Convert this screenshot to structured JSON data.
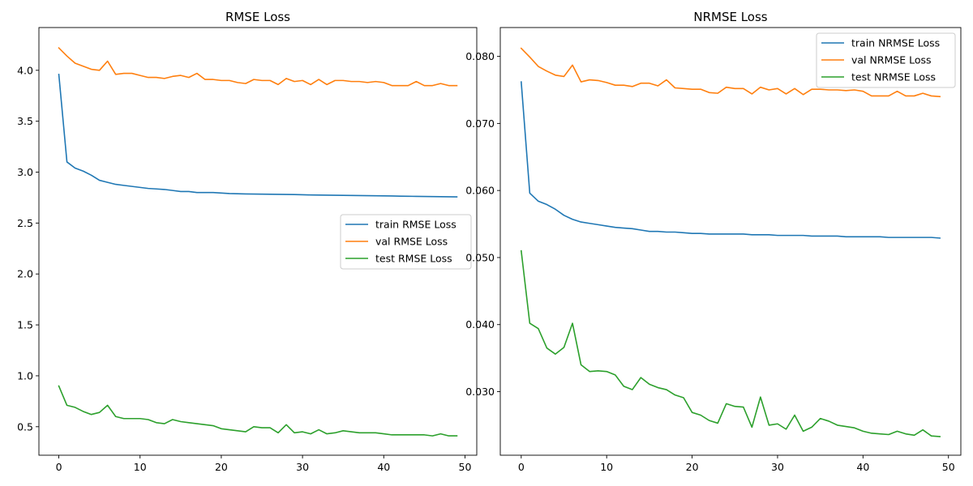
{
  "figure": {
    "background": "#ffffff"
  },
  "chart_data": [
    {
      "type": "line",
      "title": "RMSE Loss",
      "xlabel": "",
      "ylabel": "",
      "xlim": [
        -2.45,
        51.45
      ],
      "ylim": [
        0.22,
        4.42
      ],
      "xticks": [
        0,
        10,
        20,
        30,
        40,
        50
      ],
      "yticks": [
        0.5,
        1.0,
        1.5,
        2.0,
        2.5,
        3.0,
        3.5,
        4.0
      ],
      "ytick_labels": [
        "0.5",
        "1.0",
        "1.5",
        "2.0",
        "2.5",
        "3.0",
        "3.5",
        "4.0"
      ],
      "legend_position": "center-right",
      "grid": false,
      "x": [
        0,
        1,
        2,
        3,
        4,
        5,
        6,
        7,
        8,
        9,
        10,
        11,
        12,
        13,
        14,
        15,
        16,
        17,
        18,
        19,
        20,
        21,
        22,
        23,
        24,
        25,
        26,
        27,
        28,
        29,
        30,
        31,
        32,
        33,
        34,
        35,
        36,
        37,
        38,
        39,
        40,
        41,
        42,
        43,
        44,
        45,
        46,
        47,
        48,
        49
      ],
      "series": [
        {
          "name": "train RMSE Loss",
          "color": "#1f77b4",
          "values": [
            3.96,
            3.1,
            3.04,
            3.01,
            2.97,
            2.92,
            2.9,
            2.88,
            2.87,
            2.86,
            2.85,
            2.84,
            2.835,
            2.83,
            2.82,
            2.81,
            2.81,
            2.8,
            2.8,
            2.8,
            2.795,
            2.79,
            2.788,
            2.786,
            2.785,
            2.784,
            2.783,
            2.782,
            2.781,
            2.78,
            2.778,
            2.776,
            2.775,
            2.774,
            2.773,
            2.772,
            2.771,
            2.77,
            2.769,
            2.768,
            2.767,
            2.766,
            2.764,
            2.763,
            2.762,
            2.761,
            2.76,
            2.759,
            2.758,
            2.757
          ]
        },
        {
          "name": "val RMSE Loss",
          "color": "#ff7f0e",
          "values": [
            4.22,
            4.14,
            4.07,
            4.04,
            4.01,
            4.0,
            4.09,
            3.96,
            3.97,
            3.97,
            3.95,
            3.93,
            3.93,
            3.92,
            3.94,
            3.95,
            3.93,
            3.97,
            3.91,
            3.91,
            3.9,
            3.9,
            3.88,
            3.87,
            3.91,
            3.9,
            3.9,
            3.86,
            3.92,
            3.89,
            3.9,
            3.86,
            3.91,
            3.86,
            3.9,
            3.9,
            3.89,
            3.89,
            3.88,
            3.89,
            3.88,
            3.85,
            3.85,
            3.85,
            3.89,
            3.85,
            3.85,
            3.87,
            3.85,
            3.85
          ]
        },
        {
          "name": "test RMSE Loss",
          "color": "#2ca02c",
          "values": [
            0.9,
            0.71,
            0.69,
            0.65,
            0.62,
            0.64,
            0.71,
            0.6,
            0.58,
            0.58,
            0.58,
            0.57,
            0.54,
            0.53,
            0.57,
            0.55,
            0.54,
            0.53,
            0.52,
            0.51,
            0.48,
            0.47,
            0.46,
            0.45,
            0.5,
            0.49,
            0.49,
            0.44,
            0.52,
            0.44,
            0.45,
            0.43,
            0.47,
            0.43,
            0.44,
            0.46,
            0.45,
            0.44,
            0.44,
            0.44,
            0.43,
            0.42,
            0.42,
            0.42,
            0.42,
            0.42,
            0.41,
            0.43,
            0.41,
            0.41
          ]
        }
      ]
    },
    {
      "type": "line",
      "title": "NRMSE Loss",
      "xlabel": "",
      "ylabel": "",
      "xlim": [
        -2.45,
        51.45
      ],
      "ylim": [
        0.02052,
        0.0843
      ],
      "xticks": [
        0,
        10,
        20,
        30,
        40,
        50
      ],
      "yticks": [
        0.03,
        0.04,
        0.05,
        0.06,
        0.07,
        0.08
      ],
      "ytick_labels": [
        "0.030",
        "0.040",
        "0.050",
        "0.060",
        "0.070",
        "0.080"
      ],
      "legend_position": "top-right",
      "grid": false,
      "x": [
        0,
        1,
        2,
        3,
        4,
        5,
        6,
        7,
        8,
        9,
        10,
        11,
        12,
        13,
        14,
        15,
        16,
        17,
        18,
        19,
        20,
        21,
        22,
        23,
        24,
        25,
        26,
        27,
        28,
        29,
        30,
        31,
        32,
        33,
        34,
        35,
        36,
        37,
        38,
        39,
        40,
        41,
        42,
        43,
        44,
        45,
        46,
        47,
        48,
        49
      ],
      "series": [
        {
          "name": "train NRMSE Loss",
          "color": "#1f77b4",
          "values": [
            0.0762,
            0.0596,
            0.0584,
            0.0579,
            0.0572,
            0.0563,
            0.0557,
            0.0553,
            0.0551,
            0.0549,
            0.0547,
            0.0545,
            0.0544,
            0.0543,
            0.0541,
            0.0539,
            0.0539,
            0.0538,
            0.0538,
            0.0537,
            0.0536,
            0.0536,
            0.0535,
            0.0535,
            0.0535,
            0.0535,
            0.0535,
            0.0534,
            0.0534,
            0.0534,
            0.0533,
            0.0533,
            0.0533,
            0.0533,
            0.0532,
            0.0532,
            0.0532,
            0.0532,
            0.0531,
            0.0531,
            0.0531,
            0.0531,
            0.0531,
            0.053,
            0.053,
            0.053,
            0.053,
            0.053,
            0.053,
            0.0529
          ]
        },
        {
          "name": "val NRMSE Loss",
          "color": "#ff7f0e",
          "values": [
            0.0812,
            0.0799,
            0.0785,
            0.0778,
            0.0772,
            0.077,
            0.0787,
            0.0762,
            0.0765,
            0.0764,
            0.0761,
            0.0757,
            0.0757,
            0.0755,
            0.076,
            0.076,
            0.0756,
            0.0765,
            0.0753,
            0.0752,
            0.0751,
            0.0751,
            0.0746,
            0.0745,
            0.0754,
            0.0752,
            0.0752,
            0.0744,
            0.0754,
            0.075,
            0.0752,
            0.0744,
            0.0752,
            0.0743,
            0.0751,
            0.0751,
            0.075,
            0.075,
            0.0749,
            0.075,
            0.0748,
            0.0741,
            0.0741,
            0.0741,
            0.0748,
            0.0741,
            0.0741,
            0.0745,
            0.0741,
            0.074
          ]
        },
        {
          "name": "test NRMSE Loss",
          "color": "#2ca02c",
          "values": [
            0.051,
            0.0402,
            0.0394,
            0.0365,
            0.0356,
            0.0366,
            0.0402,
            0.034,
            0.033,
            0.0331,
            0.033,
            0.0325,
            0.0308,
            0.0303,
            0.0321,
            0.0311,
            0.0306,
            0.0303,
            0.0295,
            0.0291,
            0.0269,
            0.0265,
            0.0257,
            0.0253,
            0.0282,
            0.0278,
            0.0277,
            0.0247,
            0.0292,
            0.025,
            0.0252,
            0.0244,
            0.0265,
            0.0241,
            0.0247,
            0.026,
            0.0256,
            0.025,
            0.0248,
            0.0246,
            0.0241,
            0.0238,
            0.0237,
            0.0236,
            0.0241,
            0.0237,
            0.0235,
            0.0243,
            0.0234,
            0.0233
          ]
        }
      ]
    }
  ]
}
